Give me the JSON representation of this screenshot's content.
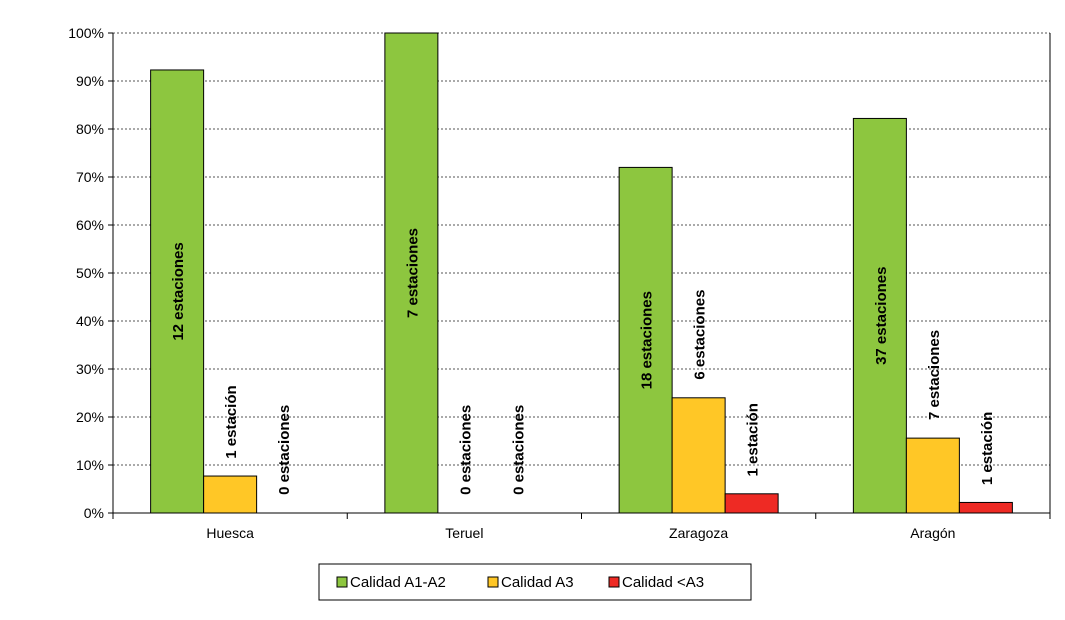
{
  "chart_data": {
    "type": "bar",
    "title": "",
    "xlabel": "",
    "ylabel": "",
    "categories": [
      "Huesca",
      "Teruel",
      "Zaragoza",
      "Aragón"
    ],
    "ylim": [
      0,
      100
    ],
    "yticks": [
      0,
      10,
      20,
      30,
      40,
      50,
      60,
      70,
      80,
      90,
      100
    ],
    "ytick_labels": [
      "0%",
      "10%",
      "20%",
      "30%",
      "40%",
      "50%",
      "60%",
      "70%",
      "80%",
      "90%",
      "100%"
    ],
    "grid": "horizontal dashed",
    "legend_position": "bottom-center",
    "series": [
      {
        "name": "Calidad A1-A2",
        "color": "#8DC63F",
        "values": [
          92.3,
          100,
          72,
          82.2
        ],
        "labels": [
          "12 estaciones",
          "7 estaciones",
          "18 estaciones",
          "37 estaciones"
        ]
      },
      {
        "name": "Calidad A3",
        "color": "#FFC726",
        "values": [
          7.7,
          0,
          24,
          15.6
        ],
        "labels": [
          "1 estación",
          "0 estaciones",
          "6 estaciones",
          "7 estaciones"
        ]
      },
      {
        "name": "Calidad <A3",
        "color": "#EE2A24",
        "values": [
          0,
          0,
          4,
          2.2
        ],
        "labels": [
          "0 estaciones",
          "0 estaciones",
          "1 estación",
          "1 estación"
        ]
      }
    ]
  }
}
